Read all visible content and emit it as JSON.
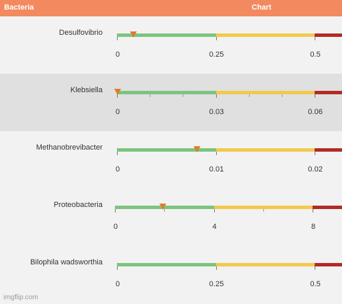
{
  "header": {
    "left_title": "Bacteria",
    "right_title": "Chart"
  },
  "colors": {
    "header": "#f2895f",
    "green": "#7cc47f",
    "yellow": "#f2c94c",
    "red": "#b22a26",
    "marker": "#e27a2a"
  },
  "rows": [
    {
      "name": "Desulfovibrio",
      "ticks": [
        "0",
        "0.25",
        "0.5"
      ],
      "range_max": 0.5,
      "value": 0.04,
      "minor_ticks": 0
    },
    {
      "name": "Klebsiella",
      "ticks": [
        "0",
        "0.03",
        "0.06"
      ],
      "range_max": 0.06,
      "value": 0.0,
      "minor_ticks": 2
    },
    {
      "name": "Methanobrevibacter",
      "ticks": [
        "0",
        "0.01",
        "0.02"
      ],
      "range_max": 0.02,
      "value": 0.008,
      "minor_ticks": 0
    },
    {
      "name": "Proteobacteria",
      "ticks": [
        "0",
        "4",
        "8"
      ],
      "range_max": 8,
      "value": 1.9,
      "minor_ticks": 1
    },
    {
      "name": "Bilophila wadsworthia",
      "ticks": [
        "0",
        "0.25",
        "0.5"
      ],
      "range_max": 0.5,
      "value": null,
      "minor_ticks": 0
    }
  ],
  "watermark": "imgflip.com"
}
